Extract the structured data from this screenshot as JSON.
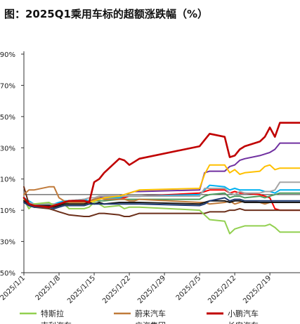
{
  "chart_data": {
    "type": "line",
    "title": "图：2025Q1乘用车标的超额涨跌幅（%）",
    "ylim": [
      -50,
      90
    ],
    "y_ticks": [
      {
        "value": 90,
        "label": "90%"
      },
      {
        "value": 70,
        "label": "70%"
      },
      {
        "value": 50,
        "label": "50%"
      },
      {
        "value": 30,
        "label": "30%"
      },
      {
        "value": 10,
        "label": "10%"
      },
      {
        "value": -10,
        "label": "10%"
      },
      {
        "value": -30,
        "label": "30%"
      },
      {
        "value": -50,
        "label": "50%"
      }
    ],
    "x": [
      "2025/1/1",
      "2025/1/2",
      "2025/1/3",
      "2025/1/6",
      "2025/1/7",
      "2025/1/8",
      "2025/1/9",
      "2025/1/10",
      "2025/1/13",
      "2025/1/14",
      "2025/1/15",
      "2025/1/16",
      "2025/1/17",
      "2025/1/20",
      "2025/1/21",
      "2025/1/22",
      "2025/1/23",
      "2025/1/24",
      "2025/2/5",
      "2025/2/6",
      "2025/2/7",
      "2025/2/10",
      "2025/2/11",
      "2025/2/12",
      "2025/2/13",
      "2025/2/14",
      "2025/2/17",
      "2025/2/18",
      "2025/2/19",
      "2025/2/20",
      "2025/2/21",
      "2025/2/24",
      "2025/2/25"
    ],
    "x_range": [
      "2025/1/1",
      "2025/2/25"
    ],
    "x_tick_labels": [
      "2025/1/1",
      "2025/1/8",
      "2025/1/15",
      "2025/1/22",
      "2025/1/29",
      "2025/2/5",
      "2025/2/12",
      "2025/2/19"
    ],
    "series": [
      {
        "name": "特斯拉",
        "color": "#92d050",
        "values": [
          -3,
          -9,
          -6,
          -5,
          -7,
          -7,
          -6,
          -9,
          -9,
          -8,
          -5,
          -6,
          -8,
          -7,
          -9,
          -8,
          -8,
          -8,
          -10,
          -13,
          -16,
          -17,
          -25,
          -22,
          -21,
          -20,
          -20,
          -20,
          -19,
          -21,
          -24,
          -24,
          -24
        ]
      },
      {
        "name": "蔚来汽车",
        "color": "#c07a3a",
        "values": [
          0,
          3,
          3,
          5,
          5,
          -2,
          -4,
          -5,
          -5,
          -4,
          -3,
          -2,
          -3,
          -3,
          -3,
          -4,
          -4,
          -3,
          -5,
          -5,
          -6,
          -5,
          -4,
          -6,
          -5,
          -4,
          -5,
          -6,
          -5,
          -5,
          -5,
          -5,
          -5
        ]
      },
      {
        "name": "小鹏汽车",
        "color": "#c00000",
        "values": [
          -2,
          -6,
          -7,
          -8,
          -7,
          -6,
          -5,
          -4,
          -4,
          -5,
          8,
          10,
          14,
          23,
          22,
          19,
          21,
          23,
          31,
          35,
          39,
          37,
          24,
          25,
          29,
          31,
          34,
          37,
          43,
          37,
          46,
          46,
          46
        ]
      },
      {
        "name": "吉利汽车",
        "color": "#ffc000",
        "values": [
          -5,
          -7,
          -8,
          -8,
          -8,
          -7,
          -6,
          -6,
          -6,
          -5,
          -4,
          -3,
          -2,
          -1,
          0,
          1,
          2,
          3,
          4,
          13,
          19,
          19,
          14,
          16,
          13,
          14,
          15,
          18,
          19,
          16,
          17,
          17,
          17
        ]
      },
      {
        "name": "广汽集团",
        "color": "#1a1a1a",
        "values": [
          -4,
          -6,
          -7,
          -7,
          -8,
          -7,
          -6,
          -6,
          -6,
          -5,
          -6,
          -5,
          -6,
          -5,
          -5,
          -5,
          -5,
          -5,
          -6,
          -5,
          -4,
          -4,
          -5,
          -4,
          -4,
          -5,
          -5,
          -5,
          -5,
          -5,
          -5,
          -5,
          -5
        ]
      },
      {
        "name": "长安汽车",
        "color": "#1f3b73",
        "values": [
          -5,
          -7,
          -8,
          -8,
          -9,
          -8,
          -7,
          -7,
          -7,
          -6,
          -6,
          -6,
          -6,
          -6,
          -6,
          -6,
          -6,
          -6,
          -7,
          -6,
          -4,
          -2,
          -4,
          -3,
          -3,
          -4,
          -4,
          -4,
          -4,
          -4,
          -4,
          -4,
          -4
        ]
      },
      {
        "name": "",
        "color": "#7030a0",
        "values": [
          -3,
          -5,
          -6,
          -6,
          -7,
          -6,
          -5,
          -5,
          -5,
          -4,
          -3,
          -2,
          -1,
          -1,
          0,
          1,
          2,
          2,
          3,
          14,
          15,
          15,
          18,
          19,
          22,
          23,
          25,
          26,
          27,
          29,
          33,
          33,
          33
        ]
      },
      {
        "name": "",
        "color": "#ff0000",
        "values": [
          -4,
          -6,
          -7,
          -7,
          -8,
          -7,
          -6,
          -5,
          -5,
          -4,
          -3,
          -3,
          -2,
          -2,
          -2,
          -1,
          -1,
          -1,
          1,
          2,
          3,
          3,
          1,
          2,
          1,
          1,
          0,
          -1,
          -2,
          -9,
          -10,
          -10,
          -10
        ]
      },
      {
        "name": "",
        "color": "#00b0f0",
        "values": [
          -2,
          -4,
          -6,
          -6,
          -6,
          -5,
          -4,
          -4,
          -3,
          -4,
          -3,
          -3,
          -2,
          -2,
          -1,
          -1,
          -1,
          -1,
          0,
          3,
          6,
          5,
          3,
          4,
          3,
          3,
          3,
          2,
          2,
          1,
          3,
          3,
          3
        ]
      },
      {
        "name": "",
        "color": "#a5a5a5",
        "values": [
          -3,
          -5,
          -6,
          -6,
          -6,
          -6,
          -5,
          -4,
          -3,
          -2,
          -2,
          -1,
          -1,
          -1,
          -1,
          -1,
          -1,
          -1,
          -1,
          4,
          4,
          4,
          1,
          0,
          2,
          1,
          1,
          2,
          2,
          3,
          8,
          8,
          8
        ]
      },
      {
        "name": "",
        "color": "#4e9a5e",
        "values": [
          -4,
          -6,
          -7,
          -7,
          -7,
          -6,
          -6,
          -5,
          -5,
          -5,
          -4,
          -4,
          -4,
          -3,
          -3,
          -3,
          -3,
          -3,
          -3,
          -1,
          0,
          1,
          -2,
          -1,
          -1,
          -2,
          -1,
          -2,
          -1,
          0,
          1,
          1,
          1
        ]
      },
      {
        "name": "",
        "color": "#6b2f1a",
        "values": [
          5,
          -6,
          -8,
          -9,
          -10,
          -11,
          -12,
          -13,
          -14,
          -14,
          -13,
          -12,
          -12,
          -13,
          -14,
          -14,
          -13,
          -12,
          -12,
          -12,
          -11,
          -11,
          -10,
          -10,
          -9,
          -10,
          -10,
          -10,
          -10,
          -10,
          -10,
          -10,
          -10
        ]
      }
    ],
    "legend_rows": [
      [
        "特斯拉",
        "蔚来汽车",
        "小鹏汽车"
      ],
      [
        "吉利汽车",
        "广汽集团",
        "长安汽车"
      ]
    ]
  }
}
